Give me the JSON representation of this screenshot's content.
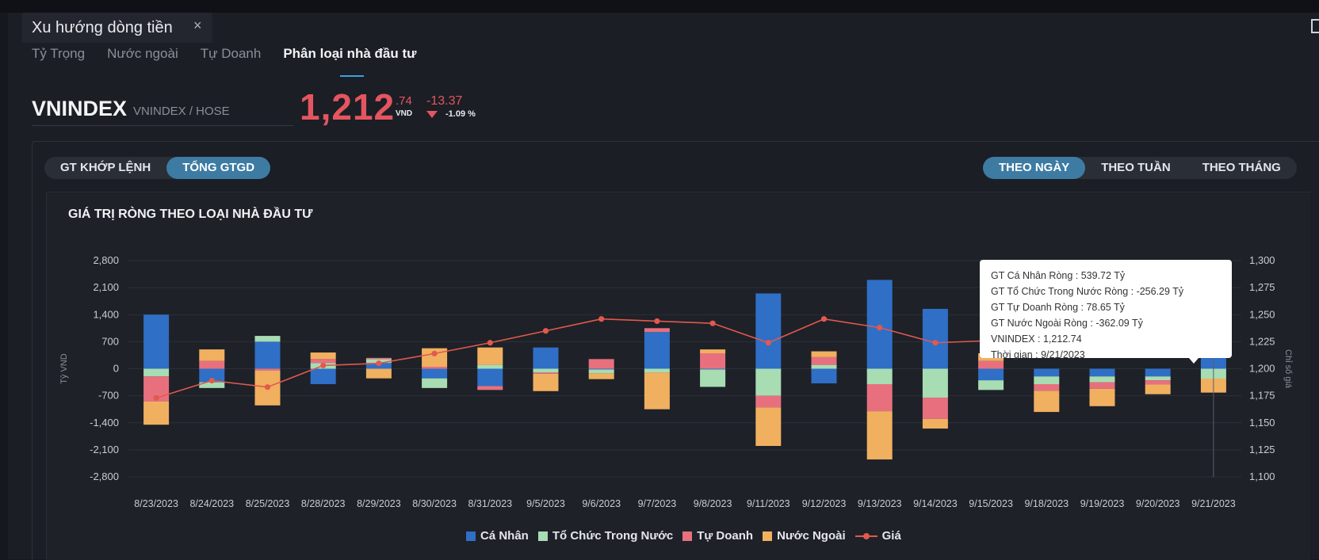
{
  "window": {
    "tab_title": "Xu hướng dòng tiền",
    "close_glyph": "×"
  },
  "subtabs": [
    "Tỷ Trọng",
    "Nước ngoài",
    "Tự Doanh",
    "Phân loại nhà đầu tư"
  ],
  "active_subtab": 3,
  "ticker": {
    "symbol": "VNINDEX",
    "exchange": "VNINDEX / HOSE",
    "price_int": "1,212",
    "price_dec": ".74",
    "currency": "VND",
    "change": "-13.37",
    "change_pct": "-1.09 %",
    "color_down": "#e5555f"
  },
  "value_toggle": {
    "options": [
      "GT KHỚP LỆNH",
      "TỔNG GTGD"
    ],
    "selected": 1
  },
  "period_toggle": {
    "options": [
      "THEO NGÀY",
      "THEO TUẦN",
      "THEO THÁNG"
    ],
    "selected": 0
  },
  "chart_data": {
    "type": "bar",
    "stacked": true,
    "title": "GIÁ TRỊ RÒNG THEO LOẠI NHÀ ĐẦU TƯ",
    "ylabel_left": "Tỷ VND",
    "ylabel_right": "Chỉ số giá",
    "ylim_left": [
      -2800,
      2800
    ],
    "yticks_left": [
      "2,800",
      "2,100",
      "1,400",
      "700",
      "0",
      "-700",
      "-1,400",
      "-2,100",
      "-2,800"
    ],
    "ylim_right": [
      1100,
      1300
    ],
    "yticks_right": [
      "1,300",
      "1,275",
      "1,250",
      "1,225",
      "1,200",
      "1,175",
      "1,150",
      "1,125",
      "1,100"
    ],
    "categories": [
      "8/23/2023",
      "8/24/2023",
      "8/25/2023",
      "8/28/2023",
      "8/29/2023",
      "8/30/2023",
      "8/31/2023",
      "9/5/2023",
      "9/6/2023",
      "9/7/2023",
      "9/8/2023",
      "9/11/2023",
      "9/12/2023",
      "9/13/2023",
      "9/14/2023",
      "9/15/2023",
      "9/18/2023",
      "9/19/2023",
      "9/20/2023",
      "9/21/2023"
    ],
    "series": [
      {
        "name": "Cá Nhân",
        "color": "#2f6fc6",
        "values": [
          1400,
          -350,
          700,
          -400,
          150,
          -250,
          -450,
          550,
          -20,
          950,
          -20,
          1950,
          -380,
          2300,
          1550,
          -300,
          -200,
          -200,
          -200,
          539.72
        ]
      },
      {
        "name": "Tổ Chức Trong Nước",
        "color": "#a8dcb3",
        "values": [
          -200,
          -150,
          150,
          150,
          100,
          -250,
          100,
          -100,
          -100,
          -100,
          -450,
          -700,
          100,
          -400,
          -750,
          -250,
          -200,
          -150,
          -100,
          -256.29
        ]
      },
      {
        "name": "Tự Doanh",
        "color": "#e8707e",
        "values": [
          -650,
          200,
          -50,
          100,
          30,
          50,
          -100,
          -30,
          250,
          100,
          400,
          -300,
          200,
          -700,
          -550,
          200,
          -170,
          -170,
          -110,
          78.65
        ]
      },
      {
        "name": "Nước Ngoài",
        "color": "#f0b060",
        "values": [
          -600,
          300,
          -900,
          170,
          -250,
          480,
          450,
          -450,
          -150,
          -950,
          100,
          -1000,
          150,
          -1250,
          -250,
          200,
          -550,
          -450,
          -250,
          -362.09
        ]
      }
    ],
    "line": {
      "name": "Giá",
      "color": "#e2594d",
      "values": [
        1173,
        1189,
        1183,
        1203,
        1205,
        1214,
        1224,
        1235,
        1246,
        1244,
        1242,
        1224,
        1246,
        1238,
        1224,
        1226,
        1222,
        1220,
        1218,
        1212.74
      ]
    }
  },
  "tooltip": {
    "lines": [
      "GT Cá Nhân Ròng  : 539.72 Tỷ",
      "GT Tổ Chức Trong Nước Ròng : -256.29 Tỷ",
      "GT Tự Doanh Ròng : 78.65 Tỷ",
      "GT Nước Ngoài Ròng : -362.09 Tỷ",
      "VNINDEX : 1,212.74",
      "Thời gian : 9/21/2023"
    ]
  }
}
